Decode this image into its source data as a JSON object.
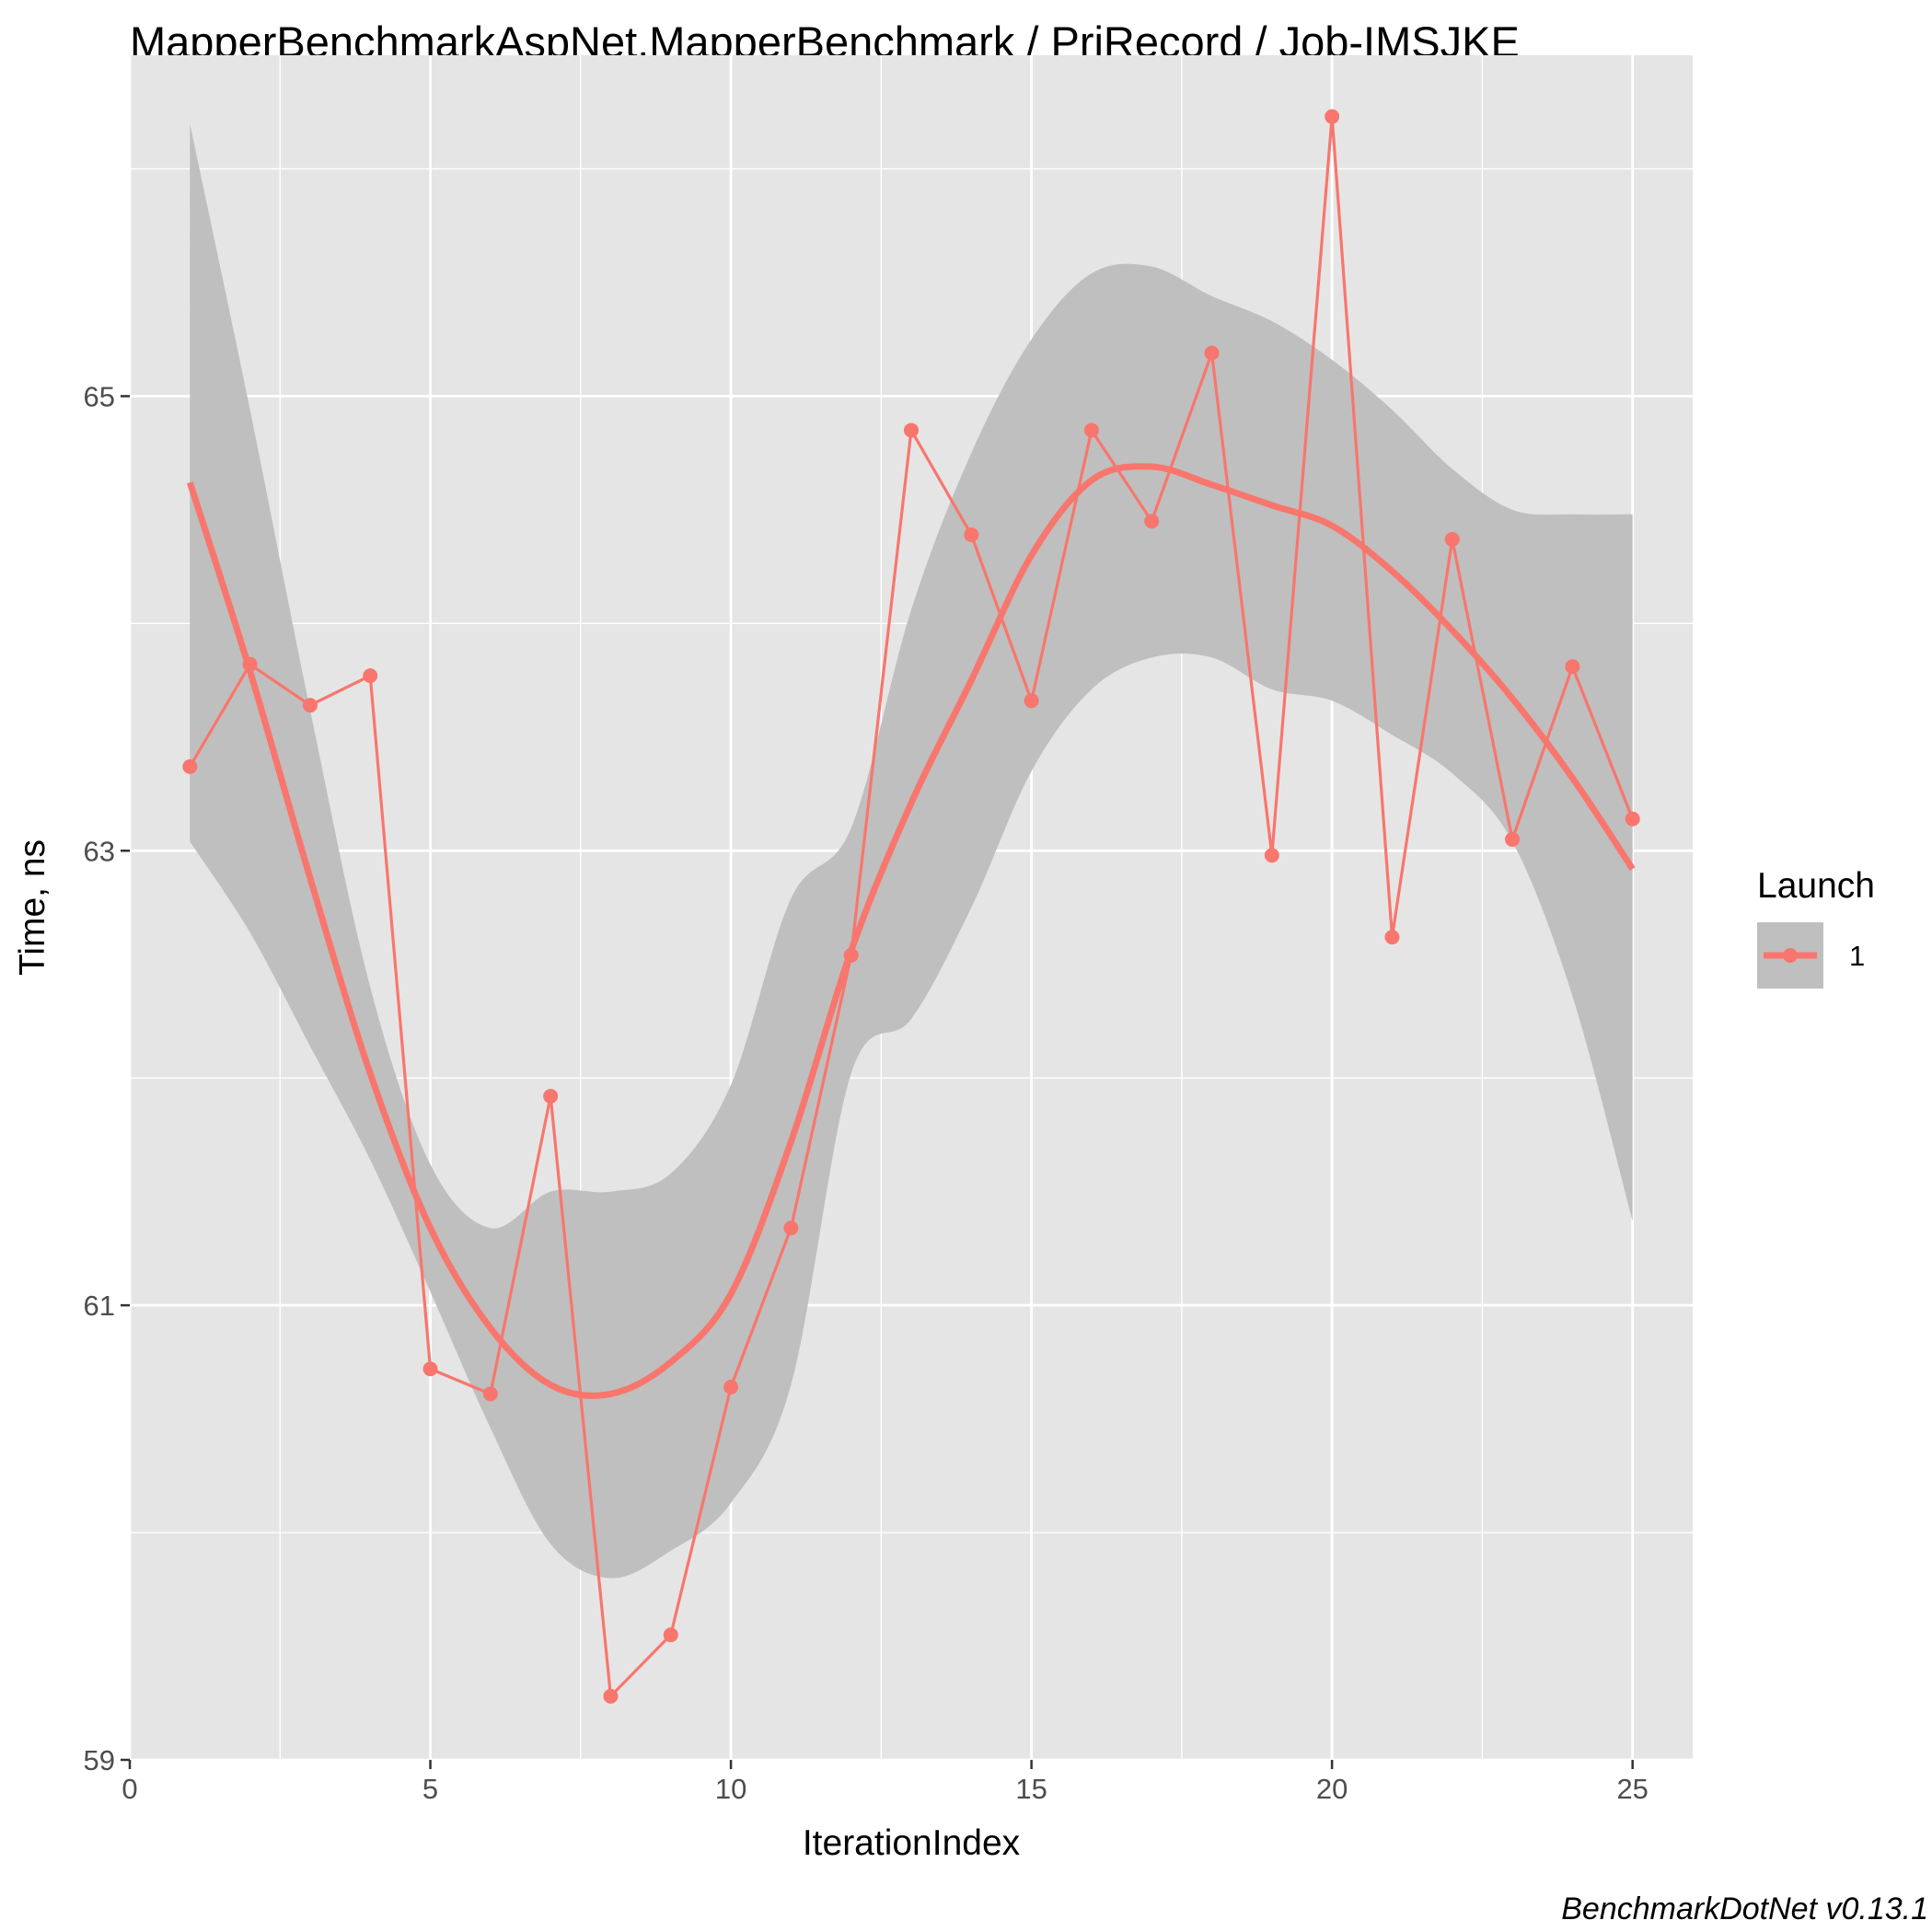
{
  "colors": {
    "panel_background": "#e5e5e5",
    "grid": "#ffffff",
    "series": "#f8766d",
    "confidence_band": "#bfbfbf",
    "tick_text": "#4d4d4d"
  },
  "chart_data": {
    "type": "line",
    "title": "MapperBenchmarkAspNet.MapperBenchmark / PrjRecord / Job-IMSJKE",
    "xlabel": "IterationIndex",
    "ylabel": "Time, ns",
    "xlim": [
      0,
      26
    ],
    "ylim": [
      59,
      66.5
    ],
    "x_ticks": [
      0,
      5,
      10,
      15,
      20,
      25
    ],
    "y_ticks": [
      59,
      61,
      63,
      65
    ],
    "grid": true,
    "caption": "BenchmarkDotNet v0.13.1",
    "legend": {
      "title": "Launch",
      "position": "right",
      "entries": [
        "1"
      ]
    },
    "series": [
      {
        "name": "1",
        "x": [
          1,
          2,
          3,
          4,
          5,
          6,
          7,
          8,
          9,
          10,
          11,
          12,
          13,
          14,
          15,
          16,
          17,
          18,
          19,
          20,
          21,
          22,
          23,
          24,
          25
        ],
        "values": [
          63.37,
          63.82,
          63.64,
          63.77,
          60.72,
          60.61,
          61.92,
          59.28,
          59.55,
          60.64,
          61.34,
          62.54,
          64.85,
          64.39,
          63.66,
          64.85,
          64.45,
          65.19,
          62.98,
          66.23,
          62.62,
          64.37,
          63.05,
          63.81,
          63.14
        ]
      }
    ],
    "smooth": {
      "x": [
        1,
        2,
        3,
        4,
        5,
        6,
        7,
        8,
        9,
        10,
        11,
        12,
        13,
        14,
        15,
        16,
        17,
        18,
        19,
        20,
        21,
        22,
        23,
        24,
        25
      ],
      "y": [
        64.62,
        63.79,
        62.88,
        62.02,
        61.34,
        60.9,
        60.65,
        60.61,
        60.75,
        61.05,
        61.72,
        62.56,
        63.21,
        63.75,
        64.3,
        64.63,
        64.69,
        64.61,
        64.52,
        64.43,
        64.23,
        63.97,
        63.67,
        63.32,
        62.92
      ],
      "lower": [
        63.04,
        62.64,
        62.14,
        61.64,
        61.06,
        60.46,
        59.95,
        59.8,
        59.92,
        60.13,
        60.65,
        62.02,
        62.26,
        62.75,
        63.35,
        63.71,
        63.85,
        63.85,
        63.71,
        63.66,
        63.51,
        63.34,
        63.04,
        62.36,
        61.37
      ],
      "upper": [
        66.2,
        64.94,
        63.62,
        62.4,
        61.62,
        61.34,
        61.5,
        61.5,
        61.58,
        61.97,
        62.79,
        63.1,
        64.06,
        64.75,
        65.25,
        65.54,
        65.57,
        65.44,
        65.33,
        65.16,
        64.94,
        64.68,
        64.5,
        64.48,
        64.48
      ]
    }
  }
}
